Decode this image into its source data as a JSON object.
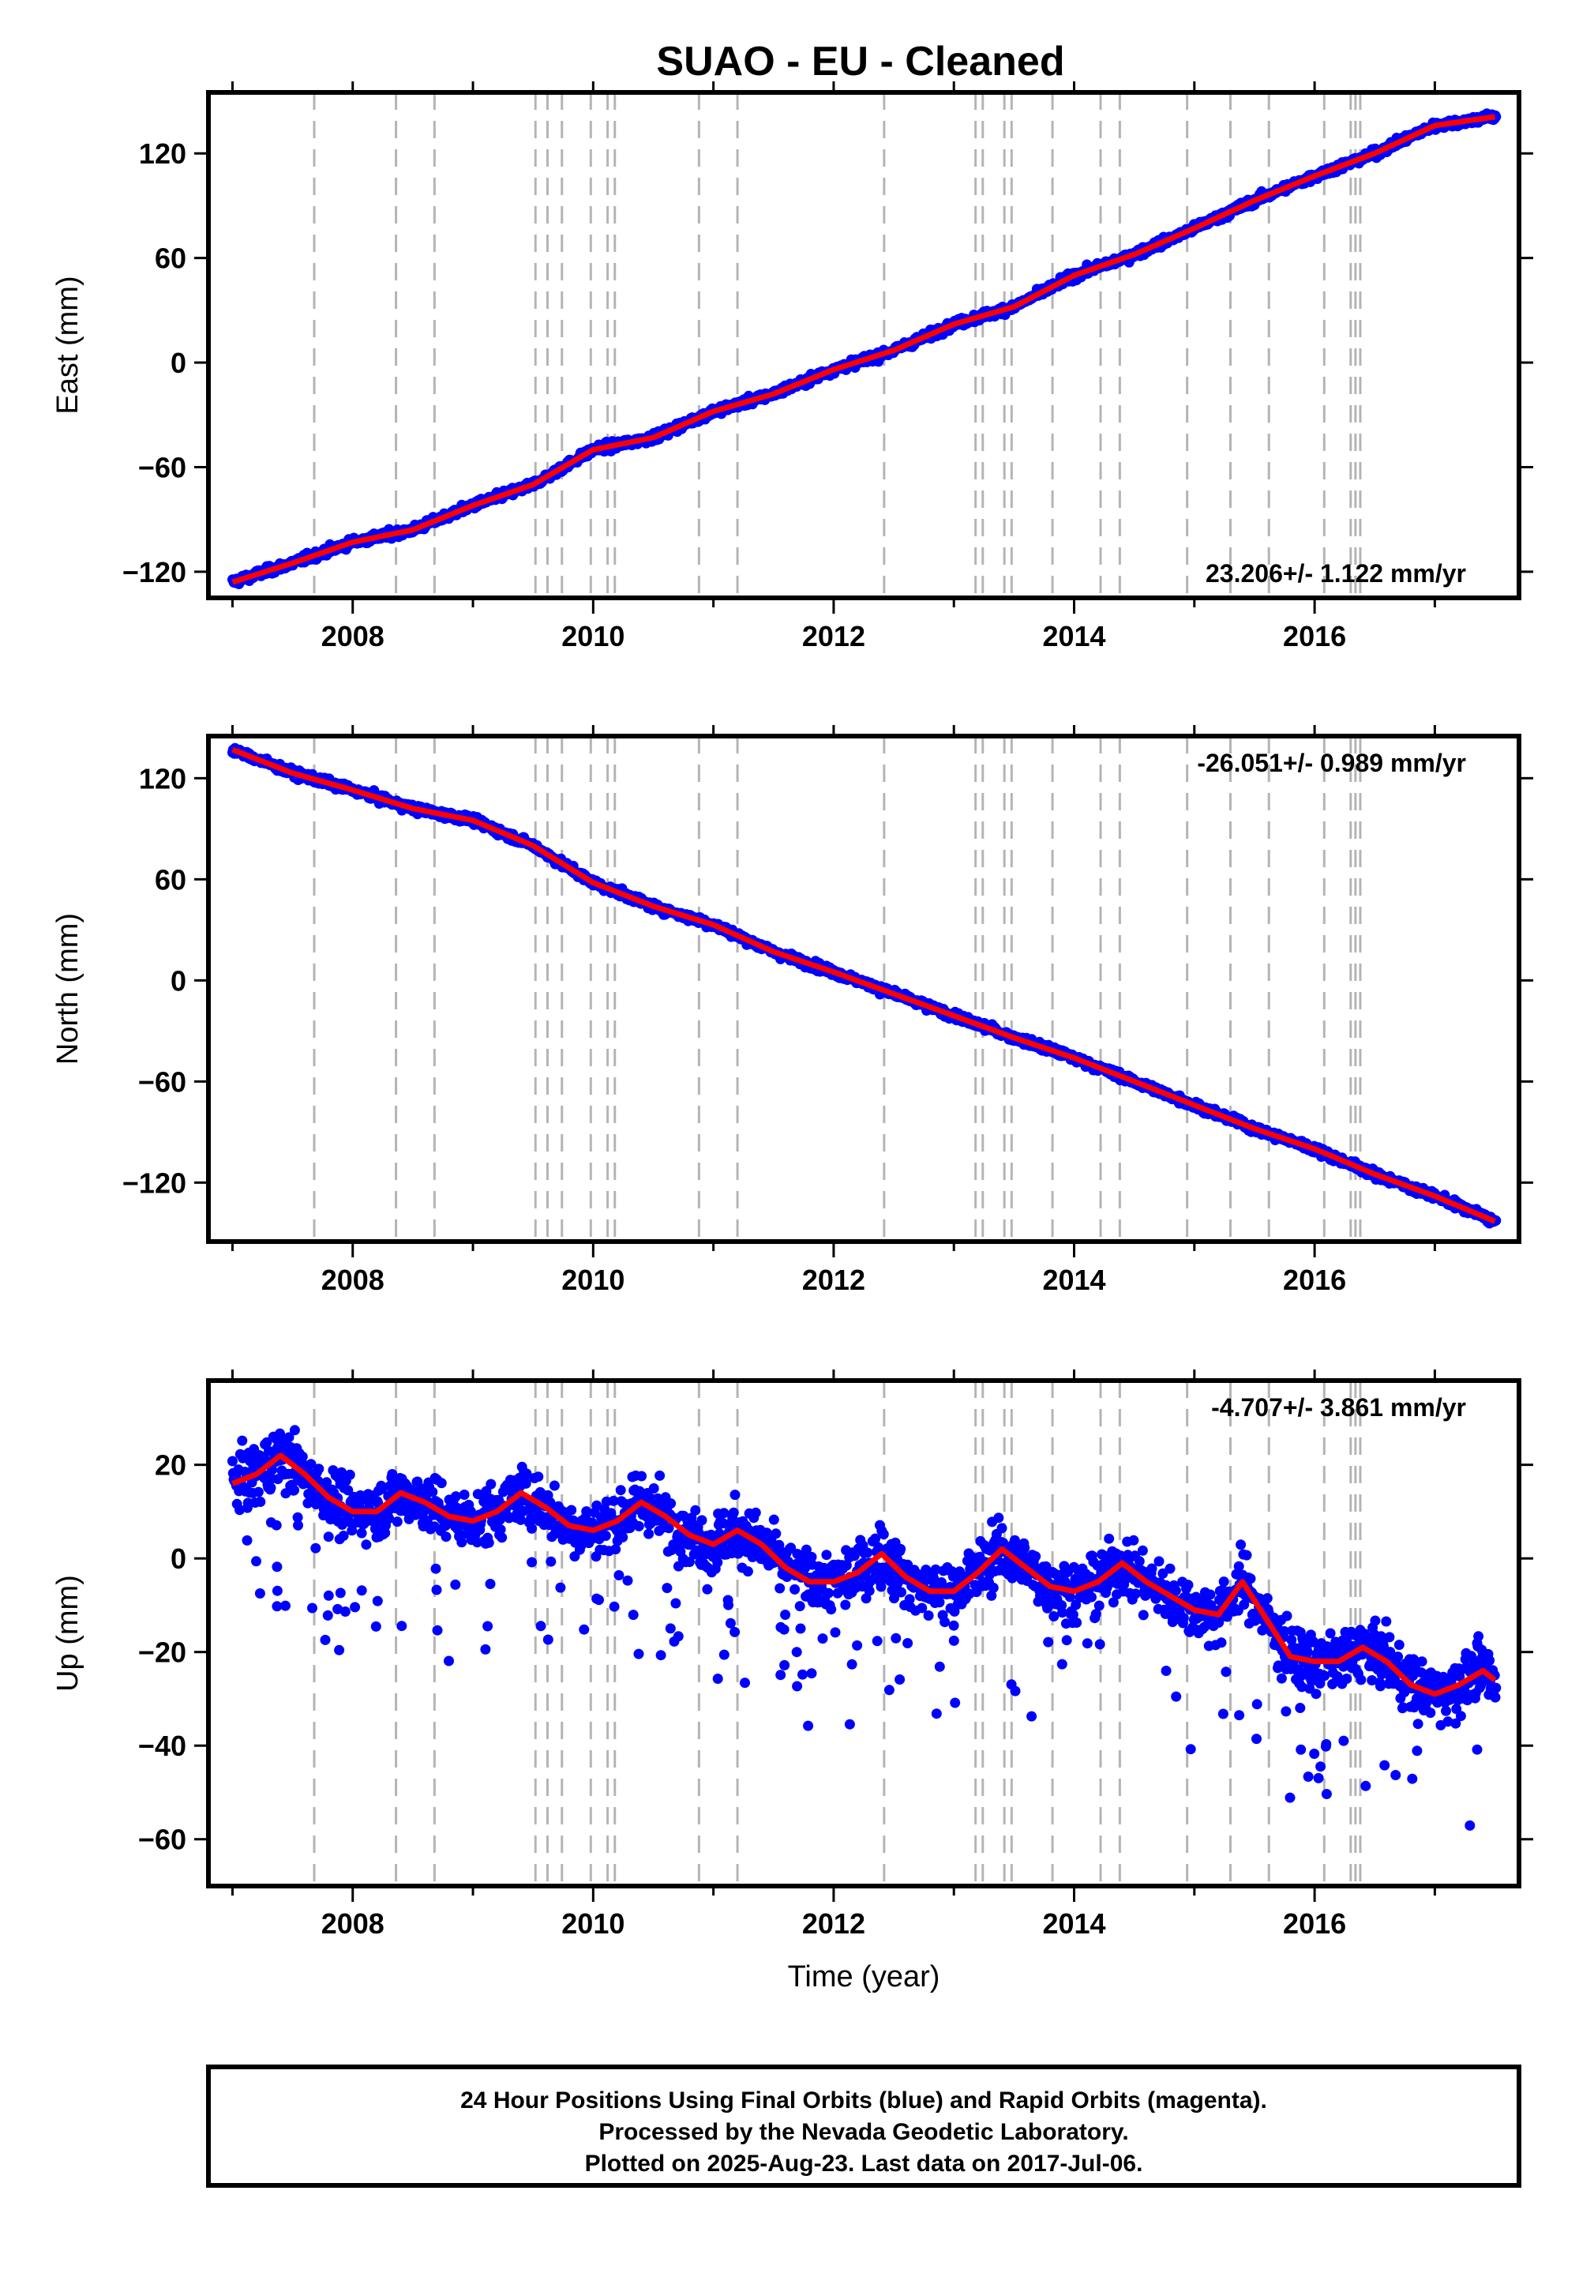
{
  "page": {
    "title": "SUAO  - EU - Cleaned",
    "footer_lines": [
      "24 Hour Positions Using Final Orbits (blue) and Rapid Orbits (magenta).",
      "Processed by the Nevada Geodetic Laboratory.",
      "Plotted on 2025-Aug-23. Last data on 2017-Jul-06."
    ]
  },
  "colors": {
    "data_points": "#0000ff",
    "model_line": "#ff0000",
    "event_lines": "#b4b4b4",
    "frame": "#000000"
  },
  "chart_data": [
    {
      "type": "scatter",
      "id": "east",
      "ylabel": "East (mm)",
      "xlabel": "",
      "rate_label": "23.206+/- 1.122 mm/yr",
      "rate_position": "bottom-right",
      "xlim": [
        2006.8,
        2017.7
      ],
      "ylim": [
        -135,
        155
      ],
      "x_ticks": [
        2008,
        2010,
        2012,
        2014,
        2016
      ],
      "x_tick_labels": [
        "2008",
        "2010",
        "2012",
        "2014",
        "2016"
      ],
      "y_ticks": [
        -120,
        -60,
        0,
        60,
        120
      ],
      "y_tick_labels": [
        "−120",
        "−60",
        "0",
        "60",
        "120"
      ],
      "grid": false,
      "series": [
        {
          "kind": "daily positions",
          "x": [
            2007.0,
            2007.5,
            2008.0,
            2008.5,
            2009.0,
            2009.5,
            2010.0,
            2010.5,
            2011.0,
            2011.5,
            2012.0,
            2012.5,
            2013.0,
            2013.5,
            2014.0,
            2014.5,
            2015.0,
            2015.5,
            2016.0,
            2016.5,
            2017.0,
            2017.5
          ],
          "y": [
            -126,
            -115,
            -103,
            -96,
            -82,
            -70,
            -50,
            -43,
            -28,
            -18,
            -4,
            7,
            22,
            32,
            50,
            62,
            77,
            93,
            107,
            120,
            136,
            141
          ],
          "scatter": 3
        },
        {
          "kind": "model fit",
          "x": [
            2007.0,
            2007.5,
            2008.0,
            2008.5,
            2009.0,
            2009.5,
            2010.0,
            2010.5,
            2011.0,
            2011.5,
            2012.0,
            2012.5,
            2013.0,
            2013.5,
            2014.0,
            2014.5,
            2015.0,
            2015.5,
            2016.0,
            2016.5,
            2017.0,
            2017.5
          ],
          "y": [
            -126,
            -115,
            -103,
            -96,
            -82,
            -70,
            -50,
            -43,
            -28,
            -18,
            -4,
            7,
            22,
            32,
            50,
            62,
            77,
            93,
            107,
            120,
            136,
            141
          ]
        }
      ]
    },
    {
      "type": "scatter",
      "id": "north",
      "ylabel": "North (mm)",
      "xlabel": "",
      "rate_label": "-26.051+/- 0.989 mm/yr",
      "rate_position": "top-right",
      "xlim": [
        2006.8,
        2017.7
      ],
      "ylim": [
        -155,
        145
      ],
      "x_ticks": [
        2008,
        2010,
        2012,
        2014,
        2016
      ],
      "x_tick_labels": [
        "2008",
        "2010",
        "2012",
        "2014",
        "2016"
      ],
      "y_ticks": [
        -120,
        -60,
        0,
        60,
        120
      ],
      "y_tick_labels": [
        "−120",
        "−60",
        "0",
        "60",
        "120"
      ],
      "grid": false,
      "series": [
        {
          "kind": "daily positions",
          "x": [
            2007.0,
            2007.5,
            2008.0,
            2008.5,
            2009.0,
            2009.5,
            2010.0,
            2010.5,
            2011.0,
            2011.5,
            2012.0,
            2012.5,
            2013.0,
            2013.5,
            2014.0,
            2014.5,
            2015.0,
            2015.5,
            2016.0,
            2016.5,
            2017.0,
            2017.5
          ],
          "y": [
            137,
            123,
            113,
            102,
            95,
            80,
            58,
            44,
            33,
            17,
            5,
            -8,
            -21,
            -34,
            -46,
            -60,
            -74,
            -88,
            -100,
            -115,
            -128,
            -143
          ],
          "scatter": 3
        },
        {
          "kind": "model fit",
          "x": [
            2007.0,
            2007.5,
            2008.0,
            2008.5,
            2009.0,
            2009.5,
            2010.0,
            2010.5,
            2011.0,
            2011.5,
            2012.0,
            2012.5,
            2013.0,
            2013.5,
            2014.0,
            2014.5,
            2015.0,
            2015.5,
            2016.0,
            2016.5,
            2017.0,
            2017.5
          ],
          "y": [
            137,
            123,
            113,
            102,
            95,
            80,
            58,
            44,
            33,
            17,
            5,
            -8,
            -21,
            -34,
            -46,
            -60,
            -74,
            -88,
            -100,
            -115,
            -128,
            -143
          ]
        }
      ]
    },
    {
      "type": "scatter",
      "id": "up",
      "ylabel": "Up (mm)",
      "xlabel": "Time (year)",
      "rate_label": "-4.707+/- 3.861 mm/yr",
      "rate_position": "top-right",
      "xlim": [
        2006.8,
        2017.7
      ],
      "ylim": [
        -70,
        38
      ],
      "x_ticks": [
        2008,
        2010,
        2012,
        2014,
        2016
      ],
      "x_tick_labels": [
        "2008",
        "2010",
        "2012",
        "2014",
        "2016"
      ],
      "y_ticks": [
        -60,
        -40,
        -20,
        0,
        20
      ],
      "y_tick_labels": [
        "−60",
        "−40",
        "−20",
        "0",
        "20"
      ],
      "grid": false,
      "series": [
        {
          "kind": "daily positions",
          "x": [
            2007.0,
            2007.2,
            2007.4,
            2007.6,
            2007.8,
            2008.0,
            2008.2,
            2008.4,
            2008.6,
            2008.8,
            2009.0,
            2009.2,
            2009.4,
            2009.6,
            2009.8,
            2010.0,
            2010.2,
            2010.4,
            2010.6,
            2010.8,
            2011.0,
            2011.2,
            2011.4,
            2011.6,
            2011.8,
            2012.0,
            2012.2,
            2012.4,
            2012.6,
            2012.8,
            2013.0,
            2013.2,
            2013.4,
            2013.6,
            2013.8,
            2014.0,
            2014.2,
            2014.4,
            2014.6,
            2014.8,
            2015.0,
            2015.2,
            2015.4,
            2015.6,
            2015.8,
            2016.0,
            2016.2,
            2016.4,
            2016.6,
            2016.8,
            2017.0,
            2017.2,
            2017.4,
            2017.5
          ],
          "y": [
            16,
            18,
            22,
            18,
            13,
            10,
            10,
            14,
            12,
            9,
            8,
            10,
            14,
            11,
            7,
            6,
            8,
            12,
            9,
            5,
            3,
            6,
            3,
            -2,
            -5,
            -5,
            -3,
            1,
            -4,
            -7,
            -7,
            -3,
            2,
            -2,
            -6,
            -7,
            -5,
            -1,
            -5,
            -8,
            -11,
            -12,
            -5,
            -13,
            -21,
            -22,
            -22,
            -19,
            -22,
            -27,
            -29,
            -27,
            -24,
            -26
          ],
          "scatter": 8
        },
        {
          "kind": "model fit",
          "x": [
            2007.0,
            2007.2,
            2007.4,
            2007.6,
            2007.8,
            2008.0,
            2008.2,
            2008.4,
            2008.6,
            2008.8,
            2009.0,
            2009.2,
            2009.4,
            2009.6,
            2009.8,
            2010.0,
            2010.2,
            2010.4,
            2010.6,
            2010.8,
            2011.0,
            2011.2,
            2011.4,
            2011.6,
            2011.8,
            2012.0,
            2012.2,
            2012.4,
            2012.6,
            2012.8,
            2013.0,
            2013.2,
            2013.4,
            2013.6,
            2013.8,
            2014.0,
            2014.2,
            2014.4,
            2014.6,
            2014.8,
            2015.0,
            2015.2,
            2015.4,
            2015.6,
            2015.8,
            2016.0,
            2016.2,
            2016.4,
            2016.6,
            2016.8,
            2017.0,
            2017.2,
            2017.4,
            2017.5
          ],
          "y": [
            16,
            18,
            22,
            18,
            13,
            10,
            10,
            14,
            12,
            9,
            8,
            10,
            14,
            11,
            7,
            6,
            8,
            12,
            9,
            5,
            3,
            6,
            3,
            -2,
            -5,
            -5,
            -3,
            1,
            -4,
            -7,
            -7,
            -3,
            2,
            -2,
            -6,
            -7,
            -5,
            -1,
            -5,
            -8,
            -11,
            -12,
            -5,
            -13,
            -21,
            -22,
            -22,
            -19,
            -22,
            -27,
            -29,
            -27,
            -24,
            -26
          ]
        }
      ]
    }
  ],
  "event_years": [
    2007.68,
    2008.36,
    2008.68,
    2009.52,
    2009.62,
    2009.74,
    2009.98,
    2010.12,
    2010.18,
    2010.88,
    2011.2,
    2012.42,
    2013.18,
    2013.24,
    2013.42,
    2013.48,
    2013.82,
    2014.22,
    2014.38,
    2014.94,
    2015.3,
    2015.62,
    2016.08,
    2016.3,
    2016.34,
    2016.38
  ]
}
